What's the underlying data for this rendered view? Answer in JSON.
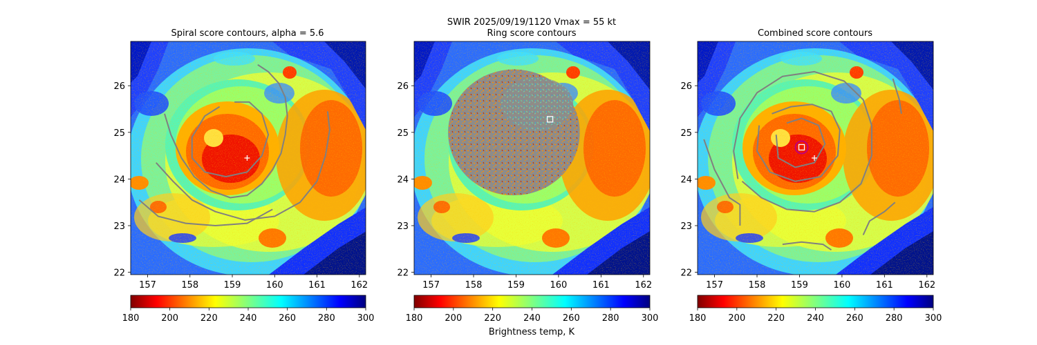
{
  "suptitle": {
    "line1": "SWIR  2025/09/19/1120    Vmax = 55 kt",
    "line2": ""
  },
  "colorbar_label": "Brightness temp, K",
  "colormap": "jet_r",
  "colors": {
    "contour": "#808080",
    "marker_white": "#ffffff",
    "best_circle": "#c0007a"
  },
  "chart_data": [
    {
      "type": "heatmap",
      "title": "Spiral score contours, alpha =  5.6",
      "xlim": [
        156.6,
        162.15
      ],
      "ylim": [
        21.95,
        26.95
      ],
      "xticks": [
        "157",
        "158",
        "159",
        "160",
        "161",
        "162"
      ],
      "yticks": [
        "22",
        "23",
        "24",
        "25",
        "26"
      ],
      "colorbar": {
        "vmin": 180,
        "vmax": 300,
        "ticks": [
          "180",
          "200",
          "220",
          "240",
          "260",
          "280",
          "300"
        ]
      },
      "contour_color": "gray",
      "markers": [
        {
          "type": "plus",
          "lon": 159.35,
          "lat": 24.45,
          "color": "white"
        }
      ],
      "contours": [
        [
          [
            159.6,
            26.45
          ],
          [
            159.85,
            26.3
          ],
          [
            160.1,
            26.05
          ],
          [
            160.25,
            25.75
          ],
          [
            160.3,
            25.35
          ],
          [
            160.25,
            24.95
          ],
          [
            160.15,
            24.55
          ],
          [
            159.95,
            24.2
          ],
          [
            159.7,
            23.9
          ],
          [
            159.35,
            23.65
          ],
          [
            158.95,
            23.6
          ],
          [
            158.5,
            23.75
          ],
          [
            158.1,
            24.05
          ],
          [
            157.8,
            24.45
          ],
          [
            157.55,
            24.95
          ],
          [
            157.4,
            25.4
          ]
        ],
        [
          [
            157.2,
            24.35
          ],
          [
            157.6,
            23.95
          ],
          [
            158.05,
            23.55
          ],
          [
            158.6,
            23.3
          ],
          [
            159.3,
            23.12
          ],
          [
            160,
            23.2
          ],
          [
            160.6,
            23.5
          ],
          [
            161,
            23.95
          ],
          [
            161.2,
            24.5
          ],
          [
            161.3,
            25.05
          ],
          [
            161.25,
            25.45
          ]
        ],
        [
          [
            156.8,
            23.55
          ],
          [
            157.25,
            23.2
          ],
          [
            157.9,
            23.05
          ],
          [
            158.6,
            23.0
          ],
          [
            159.35,
            23.05
          ],
          [
            159.95,
            23.35
          ]
        ],
        [
          [
            158.7,
            25.55
          ],
          [
            158.35,
            25.35
          ],
          [
            158.05,
            24.9
          ],
          [
            158.05,
            24.45
          ],
          [
            158.35,
            24.15
          ],
          [
            158.85,
            24.05
          ],
          [
            159.35,
            24.15
          ],
          [
            159.7,
            24.5
          ],
          [
            159.85,
            24.95
          ],
          [
            159.7,
            25.4
          ],
          [
            159.4,
            25.65
          ],
          [
            159.05,
            25.65
          ]
        ]
      ]
    },
    {
      "type": "heatmap",
      "title": "Ring score contours",
      "xlim": [
        156.6,
        162.15
      ],
      "ylim": [
        21.95,
        26.95
      ],
      "xticks": [
        "157",
        "158",
        "159",
        "160",
        "161",
        "162"
      ],
      "yticks": [
        "22",
        "23",
        "24",
        "25",
        "26"
      ],
      "colorbar": {
        "vmin": 180,
        "vmax": 300,
        "ticks": [
          "180",
          "200",
          "220",
          "240",
          "260",
          "280",
          "300"
        ]
      },
      "ring_region": {
        "center_lon": 158.95,
        "center_lat": 25.0,
        "radius_lon": 1.55,
        "radius_lat": 1.35
      },
      "markers": [
        {
          "type": "square",
          "lon": 159.8,
          "lat": 25.28,
          "color": "white"
        }
      ]
    },
    {
      "type": "heatmap",
      "title": "Combined score contours",
      "xlim": [
        156.6,
        162.15
      ],
      "ylim": [
        21.95,
        26.95
      ],
      "xticks": [
        "157",
        "158",
        "159",
        "160",
        "161",
        "162"
      ],
      "yticks": [
        "22",
        "23",
        "24",
        "25",
        "26"
      ],
      "colorbar": {
        "vmin": 180,
        "vmax": 300,
        "ticks": [
          "180",
          "200",
          "220",
          "240",
          "260",
          "280",
          "300"
        ]
      },
      "contour_color": "gray",
      "markers": [
        {
          "type": "plus",
          "lon": 159.35,
          "lat": 24.45,
          "color": "white"
        },
        {
          "type": "square",
          "lon": 159.05,
          "lat": 24.68,
          "color": "white"
        },
        {
          "type": "circle",
          "lon": 159.05,
          "lat": 24.68,
          "color": "magenta"
        }
      ],
      "contours": [
        [
          [
            157.55,
            24.0
          ],
          [
            157.45,
            24.6
          ],
          [
            157.6,
            25.3
          ],
          [
            158.0,
            25.85
          ],
          [
            158.6,
            26.2
          ],
          [
            159.35,
            26.3
          ],
          [
            160.05,
            26.1
          ],
          [
            160.5,
            25.7
          ],
          [
            160.7,
            25.15
          ],
          [
            160.7,
            24.5
          ],
          [
            160.45,
            23.9
          ],
          [
            159.95,
            23.5
          ],
          [
            159.35,
            23.3
          ],
          [
            158.7,
            23.35
          ],
          [
            158.1,
            23.6
          ],
          [
            157.65,
            23.95
          ]
        ],
        [
          [
            158.05,
            25.15
          ],
          [
            158.0,
            24.6
          ],
          [
            158.3,
            24.15
          ],
          [
            158.9,
            23.95
          ],
          [
            159.5,
            24.05
          ],
          [
            159.9,
            24.5
          ],
          [
            159.95,
            25.05
          ],
          [
            159.75,
            25.45
          ],
          [
            159.3,
            25.6
          ],
          [
            158.8,
            25.55
          ],
          [
            158.35,
            25.4
          ]
        ],
        [
          [
            158.45,
            24.95
          ],
          [
            158.5,
            24.45
          ],
          [
            158.9,
            24.25
          ],
          [
            159.35,
            24.35
          ],
          [
            159.6,
            24.75
          ],
          [
            159.45,
            25.15
          ],
          [
            159.05,
            25.3
          ],
          [
            158.7,
            25.2
          ]
        ],
        [
          [
            156.75,
            24.85
          ],
          [
            157.0,
            24.2
          ],
          [
            157.35,
            23.6
          ],
          [
            157.6,
            23.45
          ],
          [
            157.6,
            23.0
          ]
        ],
        [
          [
            158.6,
            22.6
          ],
          [
            159.05,
            22.65
          ],
          [
            159.55,
            22.6
          ],
          [
            159.75,
            22.48
          ]
        ],
        [
          [
            160.5,
            22.8
          ],
          [
            160.65,
            23.1
          ],
          [
            161.0,
            23.3
          ],
          [
            161.25,
            23.5
          ]
        ],
        [
          [
            161.2,
            26.15
          ],
          [
            161.35,
            25.7
          ],
          [
            161.4,
            25.4
          ]
        ]
      ]
    }
  ]
}
